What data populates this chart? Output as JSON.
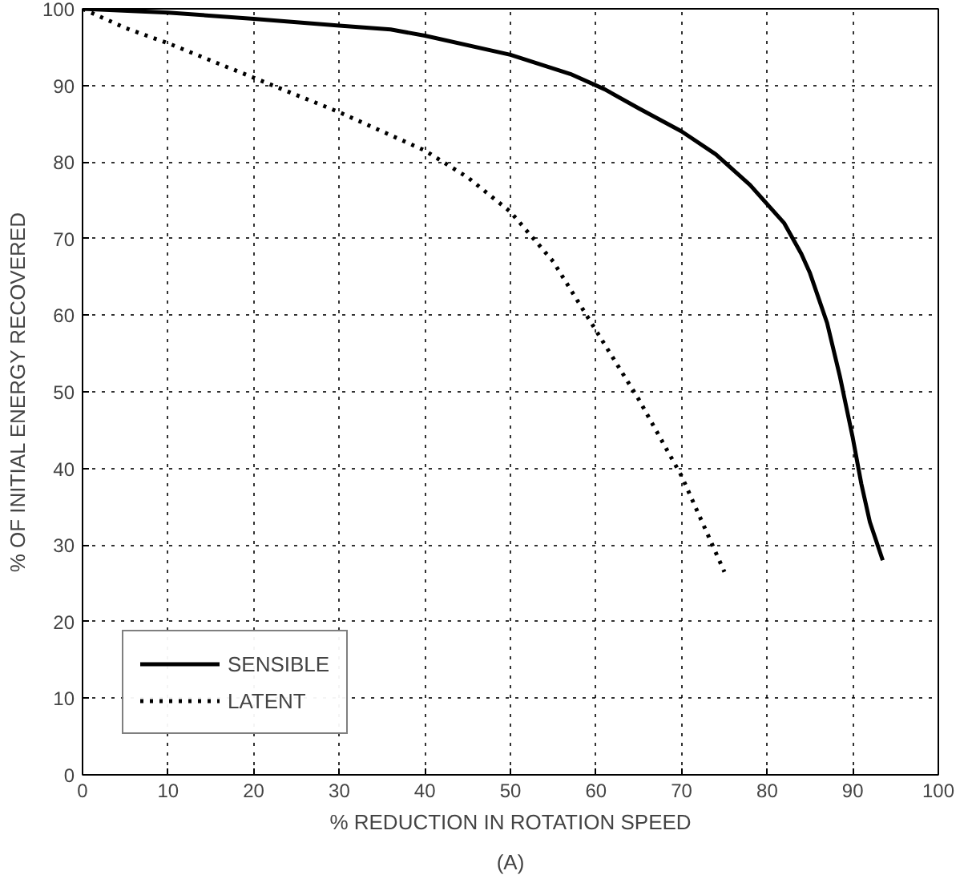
{
  "chart_data": {
    "type": "line",
    "xlabel": "% REDUCTION IN ROTATION SPEED",
    "ylabel": "% OF INITIAL ENERGY RECOVERED",
    "annotations": [
      "(A)"
    ],
    "xlim": [
      0,
      100
    ],
    "ylim": [
      0,
      100
    ],
    "xticks": [
      0,
      10,
      20,
      30,
      40,
      50,
      60,
      70,
      80,
      90,
      100
    ],
    "yticks": [
      0,
      10,
      20,
      30,
      40,
      50,
      60,
      70,
      80,
      90,
      100
    ],
    "grid": true,
    "legend": "bottom left",
    "marker": "none",
    "series": [
      {
        "name": "SENSIBLE",
        "color": "#000000",
        "line_style": "solid",
        "x": [
          0,
          10,
          20,
          30,
          36,
          40,
          50,
          57,
          61,
          65,
          70,
          74,
          78,
          82,
          84,
          85,
          87,
          88.5,
          90,
          91,
          92,
          93.5
        ],
        "values": [
          100,
          99.5,
          98.7,
          97.8,
          97.3,
          96.5,
          94,
          91.5,
          89.5,
          87,
          84,
          81,
          77,
          72,
          68,
          65.5,
          59,
          52,
          44,
          38,
          33,
          28
        ]
      },
      {
        "name": "LATENT",
        "color": "#000000",
        "line_style": "dotted",
        "x": [
          0,
          5,
          10,
          20,
          30,
          40,
          45,
          50,
          55,
          60,
          65,
          70,
          73,
          75
        ],
        "values": [
          100,
          97.5,
          95.5,
          91,
          86.5,
          81.5,
          78,
          73.5,
          67,
          58,
          49,
          39,
          31.5,
          26.5
        ]
      }
    ]
  }
}
